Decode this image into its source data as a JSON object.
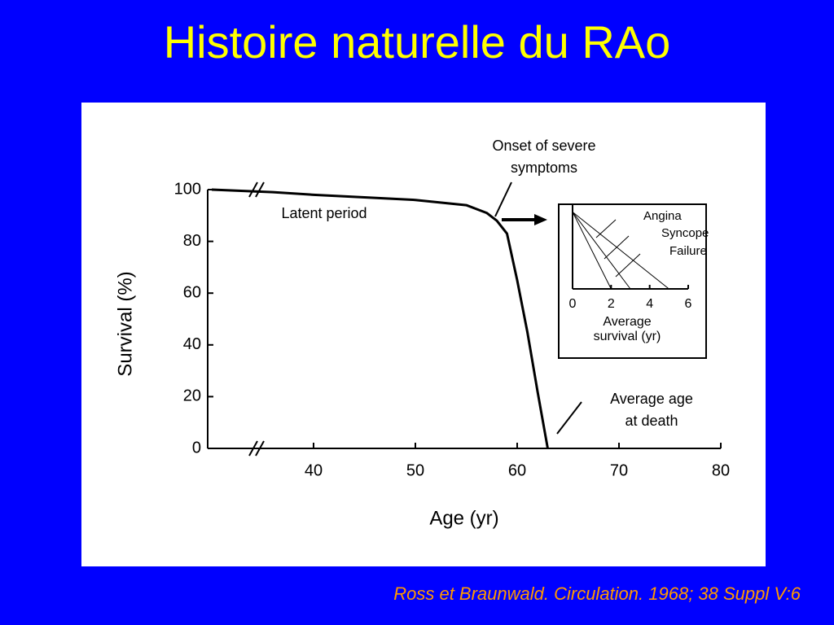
{
  "title": "Histoire naturelle du RAo",
  "citation": "Ross et Braunwald. Circulation. 1968; 38 Suppl V:6",
  "chart_data": [
    {
      "type": "line",
      "x_label": "Age (yr)",
      "y_label": "Survival (%)",
      "x": [
        30,
        36,
        40,
        45,
        50,
        55,
        57,
        58,
        59,
        60,
        61,
        62,
        63
      ],
      "values": [
        100,
        99,
        98,
        97,
        96,
        94,
        91,
        88,
        83,
        65,
        45,
        22,
        0
      ],
      "color": "#000000",
      "xlim": [
        30,
        80
      ],
      "xticks": [
        40,
        50,
        60,
        70,
        80
      ],
      "ylim": [
        0,
        100
      ],
      "yticks": [
        0,
        20,
        40,
        60,
        80,
        100
      ],
      "annotations": [
        {
          "text": [
            "Onset of severe",
            "symptoms"
          ]
        },
        {
          "text": [
            "Latent period"
          ]
        },
        {
          "text": [
            "Average age",
            "at death"
          ]
        }
      ]
    },
    {
      "type": "line",
      "x_label": [
        "Average",
        "survival (yr)"
      ],
      "series": [
        {
          "name": "Angina",
          "color": "#000000",
          "x": [
            0,
            2
          ],
          "values": [
            100,
            0
          ]
        },
        {
          "name": "Syncope",
          "color": "#000000",
          "x": [
            0,
            3
          ],
          "values": [
            100,
            0
          ]
        },
        {
          "name": "Failure",
          "color": "#000000",
          "x": [
            0,
            5
          ],
          "values": [
            100,
            0
          ]
        }
      ],
      "xlim": [
        0,
        6
      ],
      "xticks": [
        0,
        2,
        4,
        6
      ],
      "ylim": [
        0,
        110
      ]
    }
  ]
}
